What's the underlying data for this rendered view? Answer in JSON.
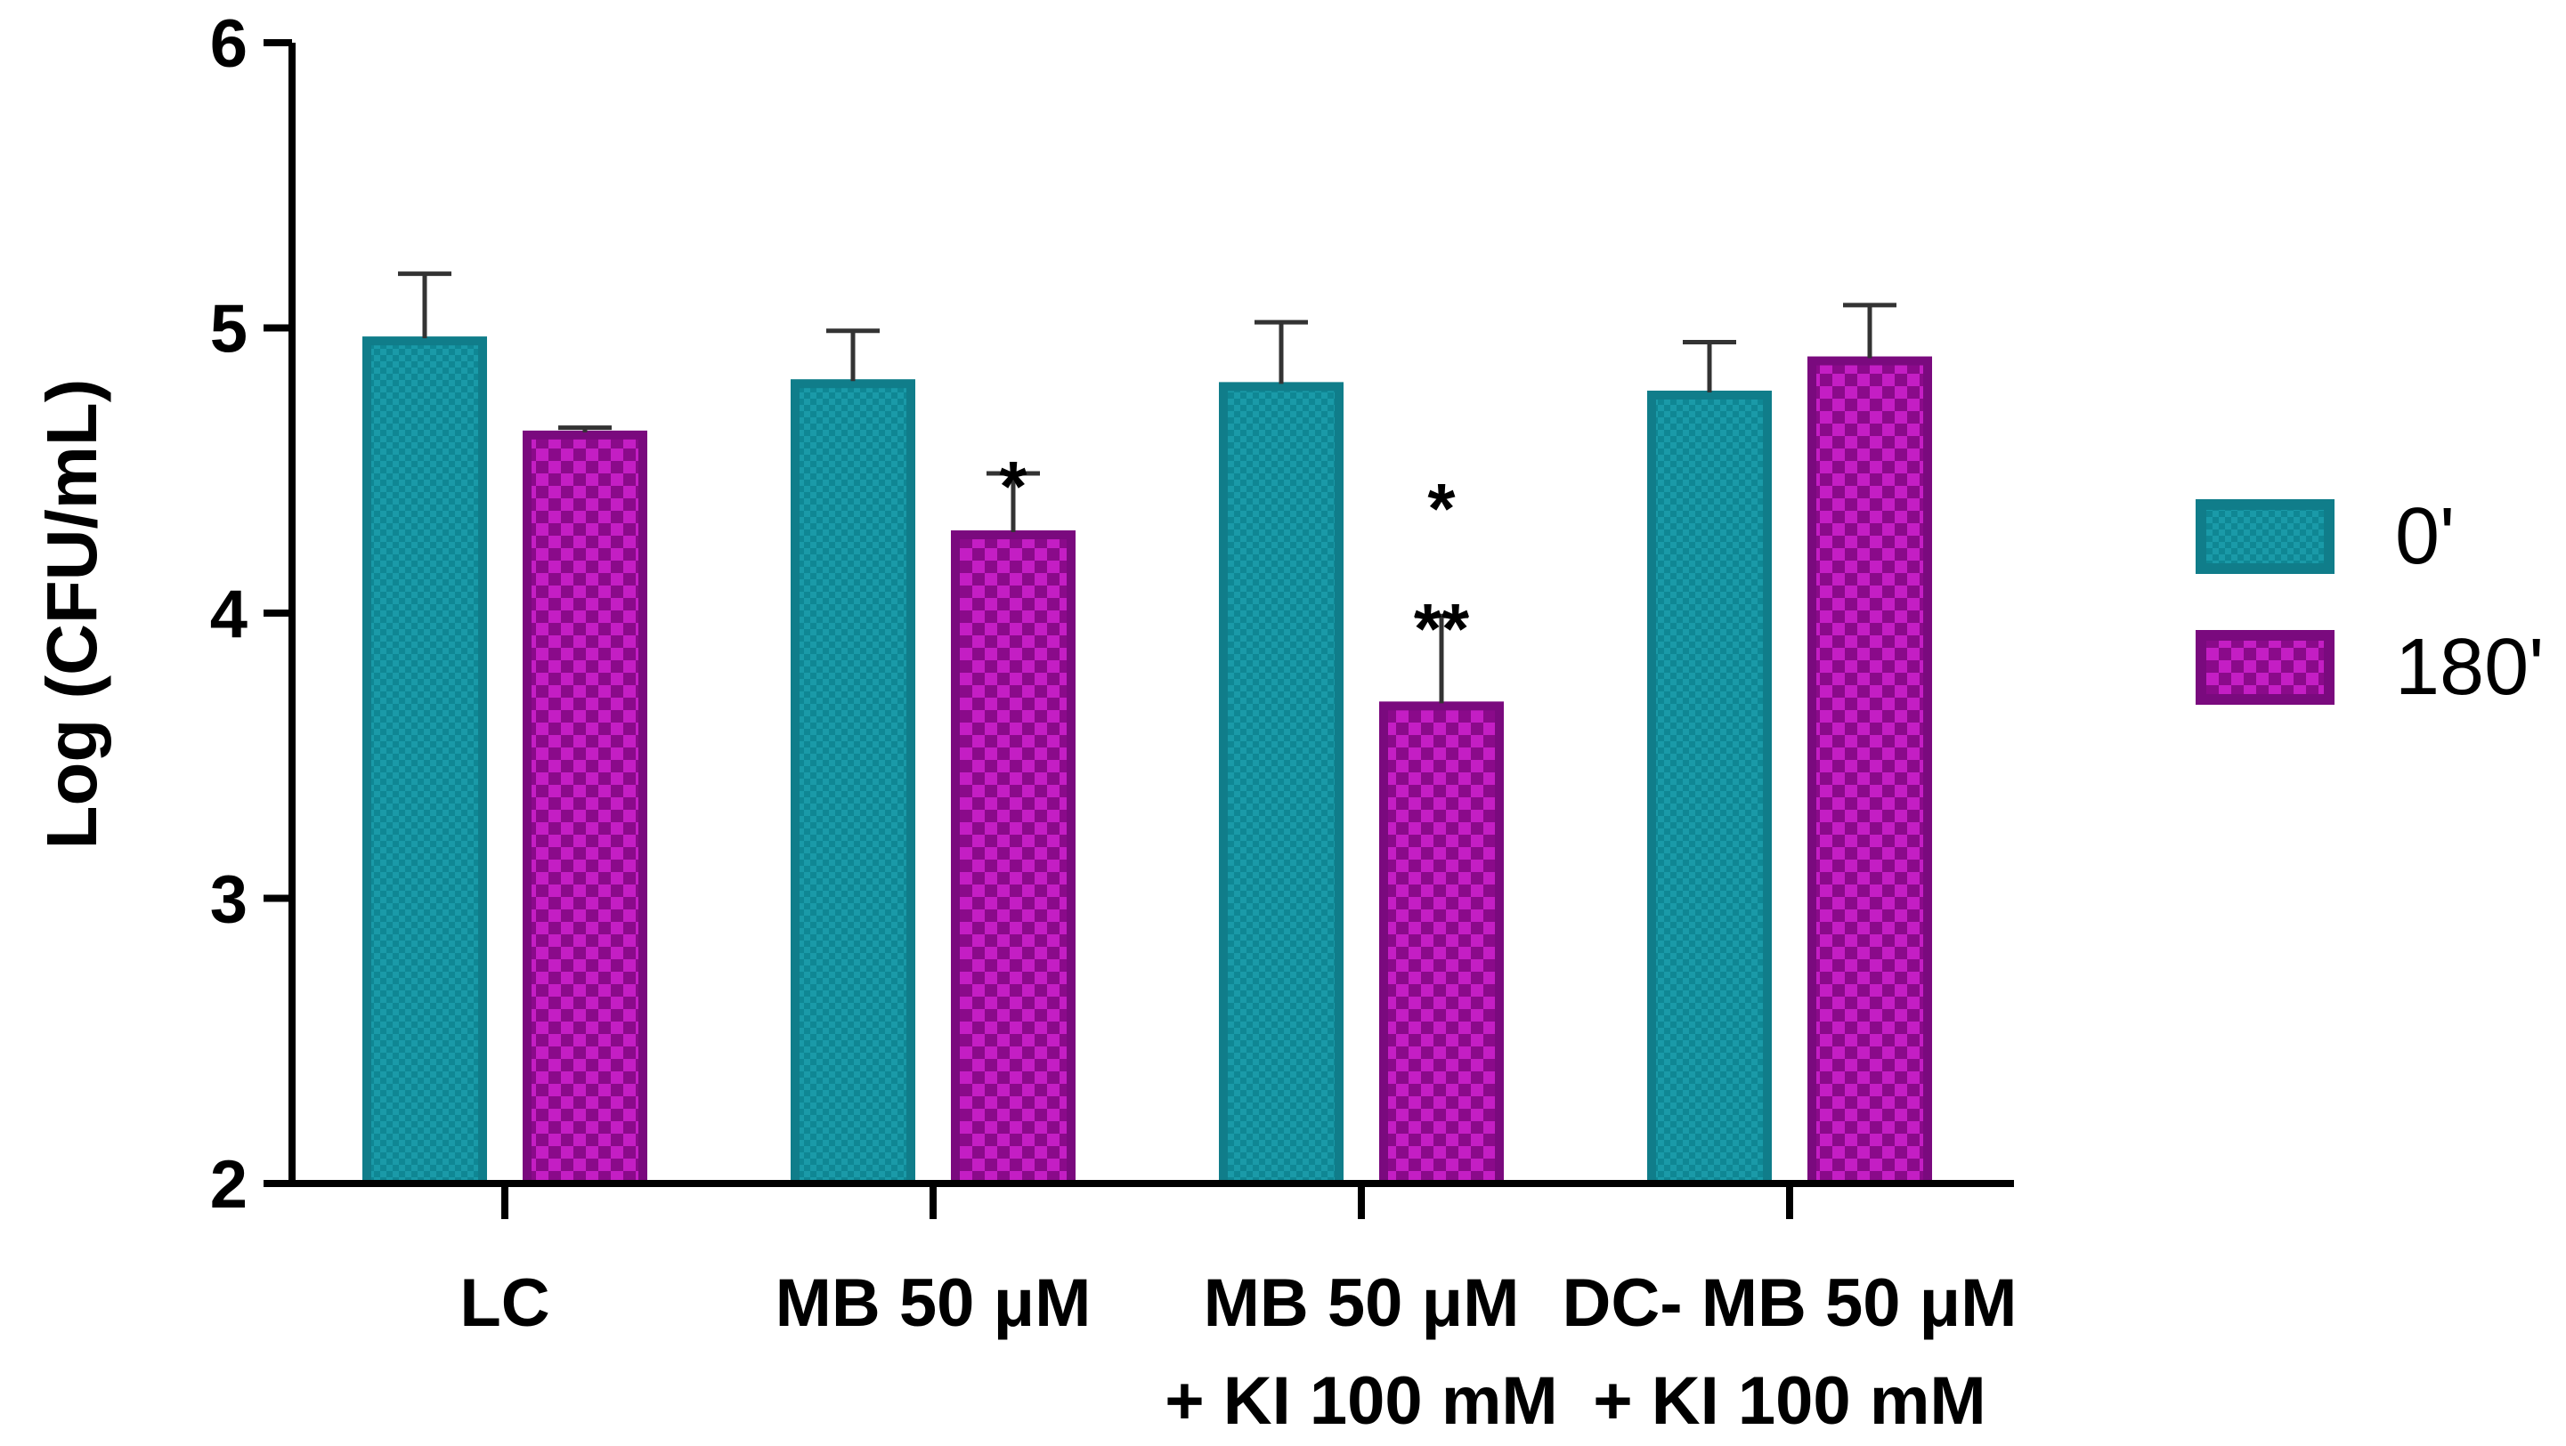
{
  "chart_data": {
    "type": "bar",
    "ylabel": "Log (CFU/mL)",
    "xlabel": "",
    "ylim": [
      2,
      6
    ],
    "yticks": [
      "2",
      "3",
      "4",
      "5",
      "6"
    ],
    "categories": [
      [
        "LC"
      ],
      [
        "MB 50 μM"
      ],
      [
        "MB 50 μM",
        "+ KI 100 mM"
      ],
      [
        "DC- MB 50 μM",
        "+ KI 100 mM"
      ]
    ],
    "series": [
      {
        "name": "0'",
        "values": [
          4.97,
          4.82,
          4.81,
          4.78
        ],
        "errors": [
          0.22,
          0.17,
          0.21,
          0.17
        ]
      },
      {
        "name": "180'",
        "values": [
          4.64,
          4.29,
          3.69,
          4.9
        ],
        "errors": [
          0.01,
          0.2,
          0.3,
          0.18
        ]
      }
    ],
    "annotations": [
      {
        "category": 1,
        "series": 1,
        "lines": [
          "*"
        ]
      },
      {
        "category": 2,
        "series": 1,
        "lines": [
          "*",
          "**"
        ]
      }
    ],
    "legend_position": "right"
  },
  "colors": {
    "series_0_fill": "#1a9aa8",
    "series_0_dark": "#0d7f8d",
    "series_0_border": "#107d8a",
    "series_1_fill": "#c41ec4",
    "series_1_dark": "#8a0a8a",
    "series_1_border": "#7a0a7e",
    "axis": "#000000"
  }
}
